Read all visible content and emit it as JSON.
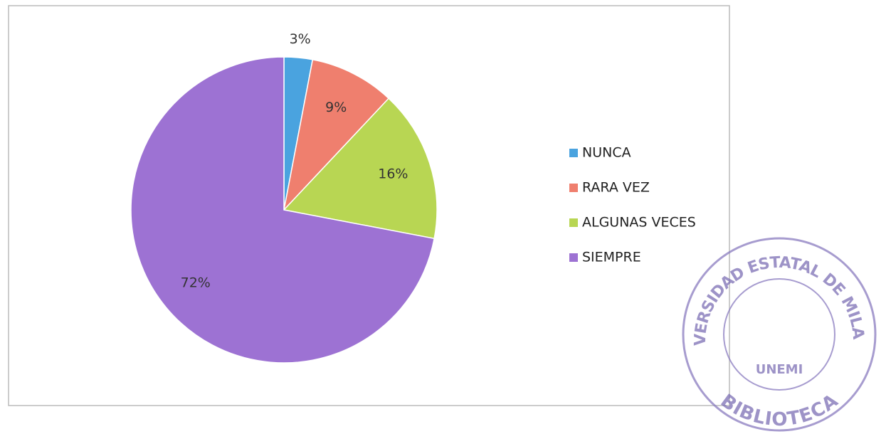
{
  "chart_data": {
    "type": "pie",
    "categories": [
      "NUNCA",
      "RARA VEZ",
      "ALGUNAS VECES",
      "SIEMPRE"
    ],
    "values": [
      3,
      9,
      16,
      72
    ],
    "value_labels": [
      "3%",
      "9%",
      "16%",
      "72%"
    ],
    "colors": [
      "#4aa3df",
      "#ef7f6e",
      "#b8d653",
      "#9d72d3"
    ],
    "legend": "right"
  },
  "stamp": {
    "top": "UNIVERSIDAD ESTATAL DE MILAGRO",
    "center": "UNEMI",
    "bottom": "BIBLIOTECA"
  }
}
